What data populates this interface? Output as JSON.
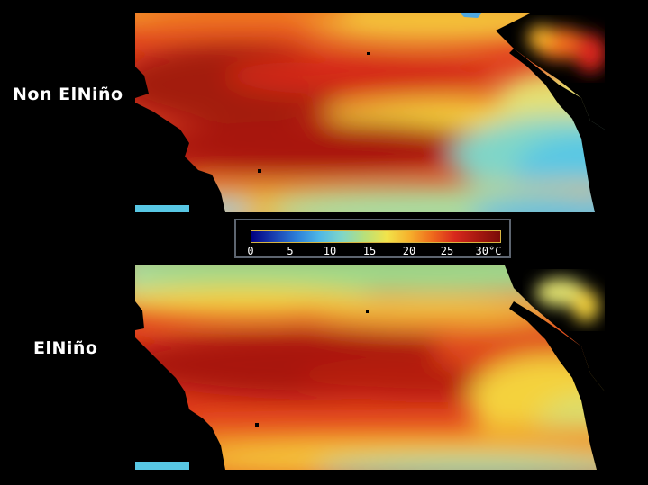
{
  "panels": [
    {
      "label": "Non ElNiño"
    },
    {
      "label": "ElNiño"
    }
  ],
  "colorbar": {
    "ticks": [
      "0",
      "5",
      "10",
      "15",
      "20",
      "25",
      "30°C"
    ],
    "colors": [
      "#000080",
      "#1a3fb0",
      "#2d7fd8",
      "#4fb7e6",
      "#7fd6c8",
      "#b8e07a",
      "#f2e34a",
      "#f6b02c",
      "#ef6a1c",
      "#d8281c",
      "#a81810",
      "#7a0c08"
    ]
  },
  "palette": {
    "hot": "#8a1208",
    "red": "#d42a18",
    "orange": "#ef6a1c",
    "yellow": "#f4d23c",
    "green": "#9ad98a",
    "cyan": "#58c7e4",
    "blue": "#2f86d6",
    "land": "#000000"
  }
}
